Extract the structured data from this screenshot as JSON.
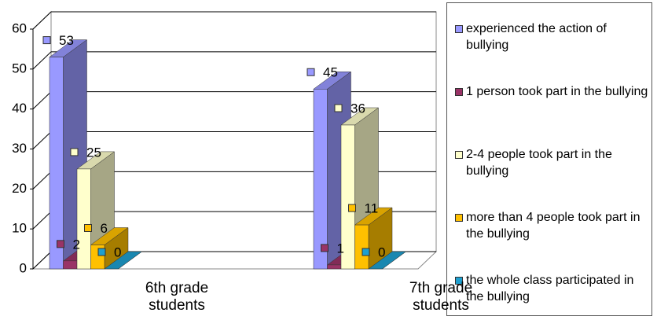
{
  "chart_data": {
    "type": "bar3d",
    "categories": [
      "6th grade students",
      "7th grade students"
    ],
    "series": [
      {
        "name": "experienced the action of bullying",
        "color": "#9999ff",
        "values": [
          53,
          45
        ]
      },
      {
        "name": "1 person took part in the bullying",
        "color": "#993366",
        "values": [
          2,
          1
        ]
      },
      {
        "name": "2-4 people took part in the bullying",
        "color": "#ffffcc",
        "values": [
          25,
          36
        ]
      },
      {
        "name": "more than 4 people took part in the bullying",
        "color": "#ffc000",
        "values": [
          6,
          11
        ]
      },
      {
        "name": "the whole class participated in the bullying",
        "color": "#1e9fcf",
        "values": [
          0,
          0
        ]
      }
    ],
    "ylim": [
      0,
      60
    ],
    "yticks": [
      0,
      10,
      20,
      30,
      40,
      50,
      60
    ],
    "grid": true
  }
}
